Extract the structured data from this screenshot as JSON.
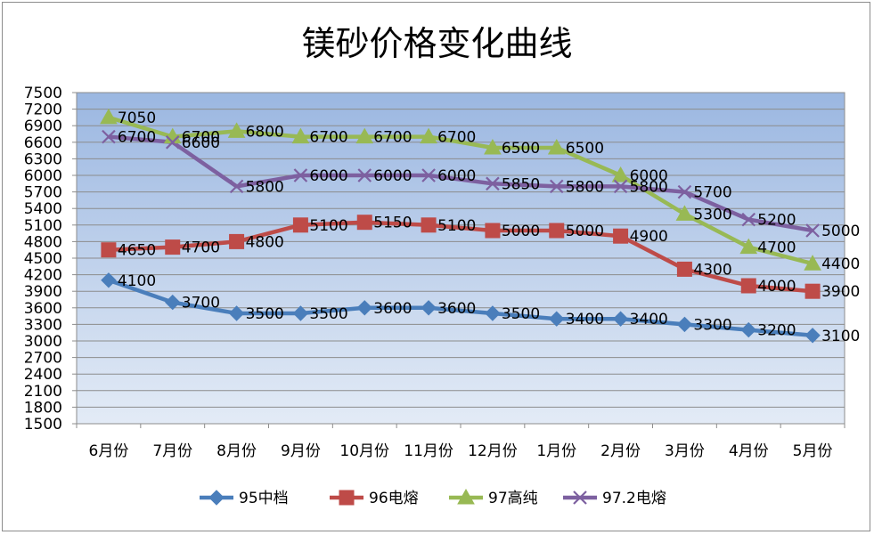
{
  "chart_data": {
    "type": "line",
    "title": "镁砂价格变化曲线",
    "categories": [
      "6月份",
      "7月份",
      "8月份",
      "9月份",
      "10月份",
      "11月份",
      "12月份",
      "1月份",
      "2月份",
      "3月份",
      "4月份",
      "5月份"
    ],
    "ylim": [
      1500,
      7500
    ],
    "yticks": [
      1500,
      1800,
      2100,
      2400,
      2700,
      3000,
      3300,
      3600,
      3900,
      4200,
      4500,
      4800,
      5100,
      5400,
      5700,
      6000,
      6300,
      6600,
      6900,
      7200,
      7500
    ],
    "grid": true,
    "legend_position": "bottom",
    "series": [
      {
        "name": "95中档",
        "color": "#4a7ebb",
        "marker": "diamond",
        "values": [
          4100,
          3700,
          3500,
          3500,
          3600,
          3600,
          3500,
          3400,
          3400,
          3300,
          3200,
          3100
        ]
      },
      {
        "name": "96电熔",
        "color": "#be4b48",
        "marker": "square",
        "values": [
          4650,
          4700,
          4800,
          5100,
          5150,
          5100,
          5000,
          5000,
          4900,
          4300,
          4000,
          3900
        ]
      },
      {
        "name": "97高纯",
        "color": "#98b954",
        "marker": "triangle",
        "values": [
          7050,
          6700,
          6800,
          6700,
          6700,
          6700,
          6500,
          6500,
          6000,
          5300,
          4700,
          4400
        ]
      },
      {
        "name": "97.2电熔",
        "color": "#7d60a0",
        "marker": "x",
        "values": [
          6700,
          6600,
          5800,
          6000,
          6000,
          6000,
          5850,
          5800,
          5800,
          5700,
          5200,
          5000
        ]
      }
    ],
    "data_labels": [
      [
        4100,
        3700,
        3500,
        3500,
        3600,
        3600,
        3500,
        3400,
        3400,
        3300,
        3200,
        3100
      ],
      [
        4650,
        4700,
        4800,
        5100,
        5150,
        5100,
        5000,
        5000,
        4900,
        4300,
        4000,
        3900
      ],
      [
        7050,
        6700,
        6800,
        6700,
        6700,
        6700,
        6500,
        6500,
        6000,
        5300,
        4700,
        4400
      ],
      [
        6700,
        6600,
        5800,
        6000,
        6000,
        6000,
        5850,
        5800,
        5800,
        5700,
        5200,
        5000
      ]
    ]
  }
}
